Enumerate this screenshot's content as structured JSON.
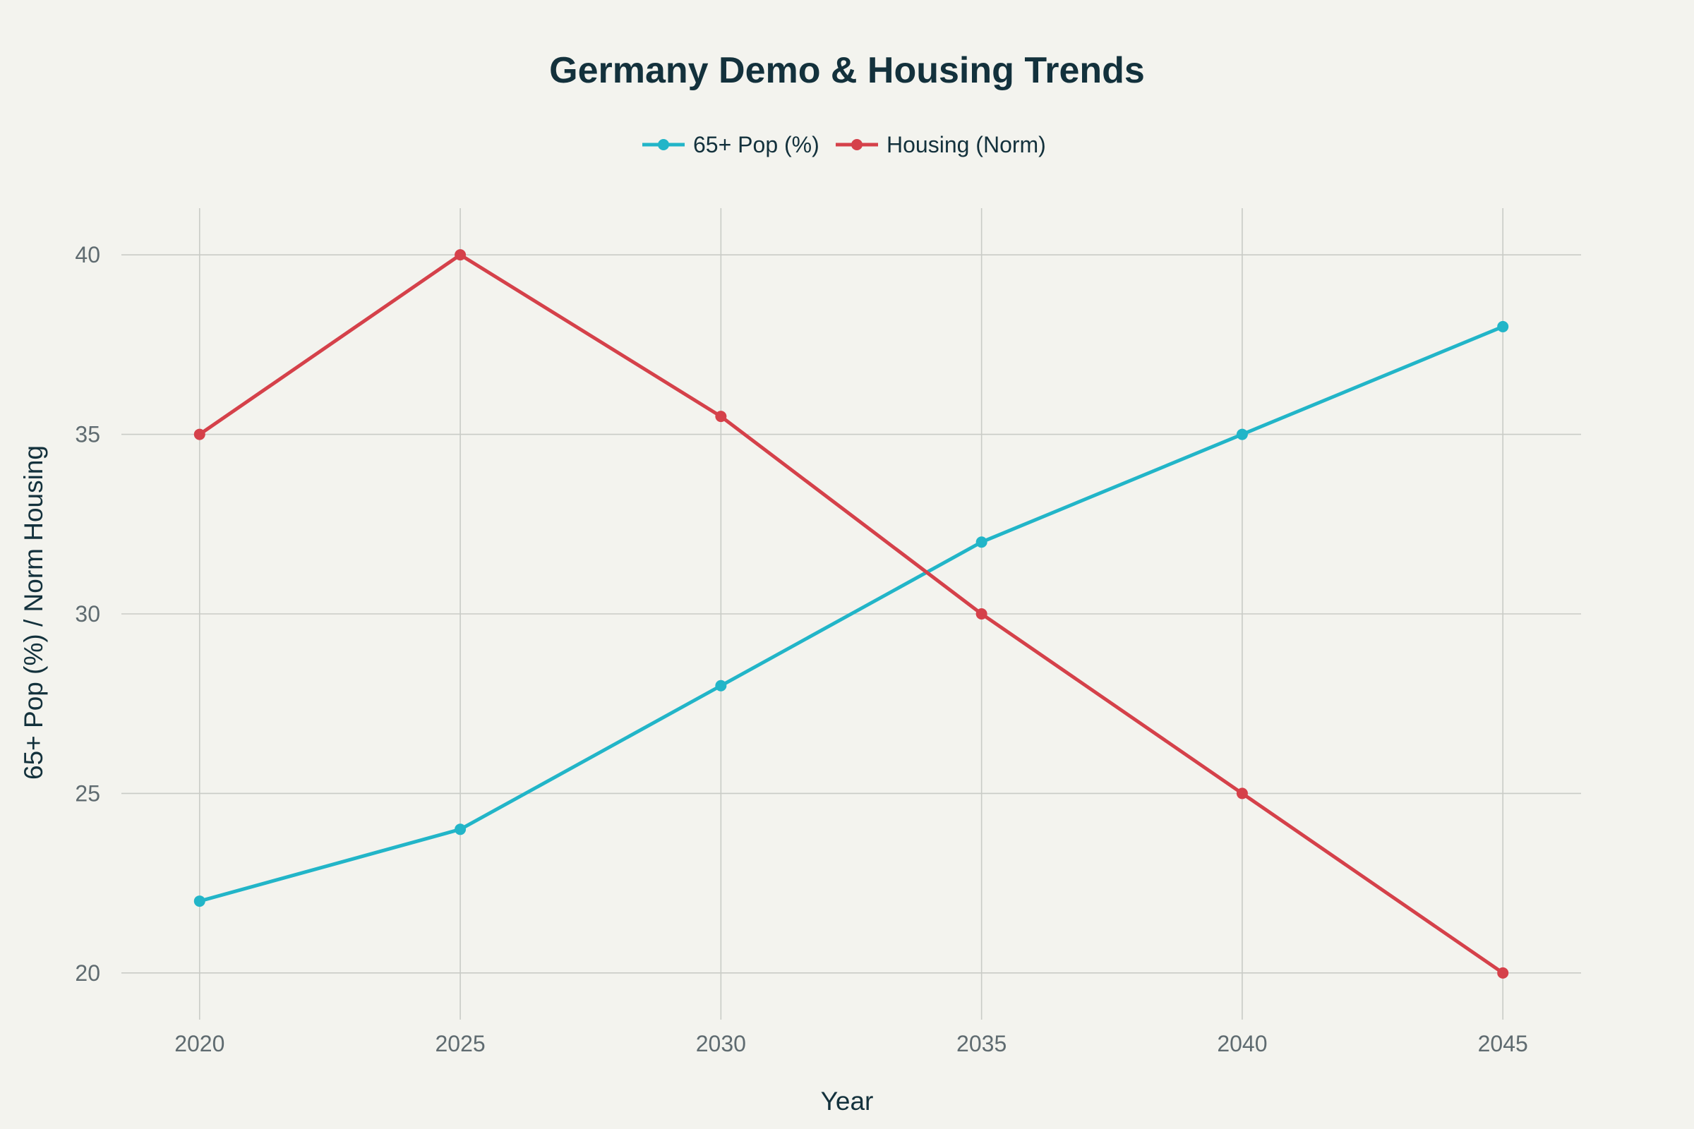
{
  "chart_data": {
    "type": "line",
    "title": "Germany Demo & Housing Trends",
    "xlabel": "Year",
    "ylabel": "65+ Pop (%) / Norm Housing",
    "x": [
      2020,
      2025,
      2030,
      2035,
      2040,
      2045
    ],
    "x_ticks": [
      "2020",
      "2025",
      "2030",
      "2035",
      "2040",
      "2045"
    ],
    "y_ticks": [
      "20",
      "25",
      "30",
      "35",
      "40"
    ],
    "xlim": [
      2018.5,
      2046.5
    ],
    "ylim": [
      18.7,
      41.3
    ],
    "grid": true,
    "legend_position": "top-center",
    "series": [
      {
        "name": "65+ Pop (%)",
        "color": "#22b5c8",
        "values": [
          22,
          24,
          28,
          32,
          35,
          38
        ]
      },
      {
        "name": "Housing (Norm)",
        "color": "#d5414a",
        "values": [
          35,
          40,
          35.5,
          30,
          25,
          20
        ]
      }
    ]
  }
}
